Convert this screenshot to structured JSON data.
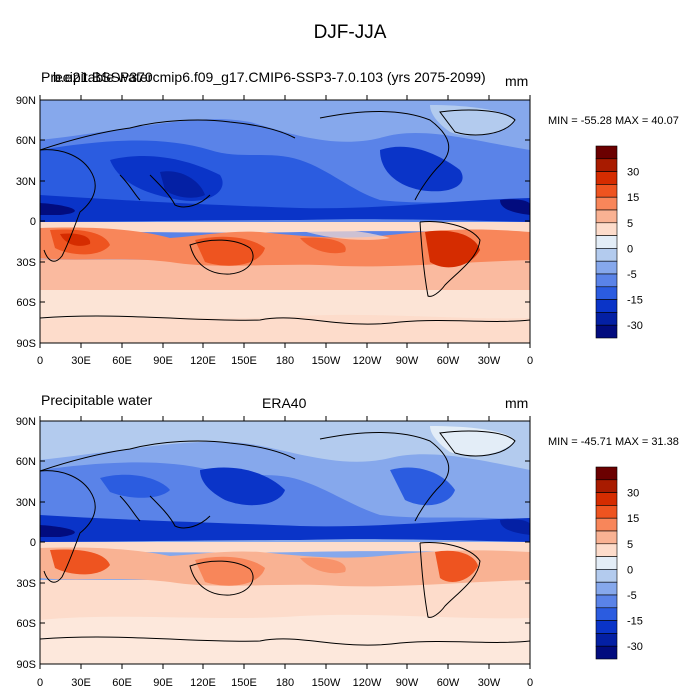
{
  "figure": {
    "title": "DJF-JJA"
  },
  "panels": [
    {
      "left_text": "Precipitable water",
      "center_text": "b.e21.BSSP370cmip6.f09_g17.CMIP6-SSP3-7.0.103 (yrs 2075-2099)",
      "units": "mm",
      "stats": "MIN = -55.28 MAX =  40.07"
    },
    {
      "left_text": "Precipitable water",
      "center_text": "ERA40",
      "units": "mm",
      "stats": "MIN = -45.71 MAX =  31.38"
    }
  ],
  "map": {
    "lat_ticks": [
      "90N",
      "60N",
      "30N",
      "0",
      "30S",
      "60S",
      "90S"
    ],
    "lon_ticks": [
      "0",
      "30E",
      "60E",
      "90E",
      "120E",
      "150E",
      "180",
      "150W",
      "120W",
      "90W",
      "60W",
      "30W",
      "0"
    ]
  },
  "colorbar": {
    "levels": [
      "30",
      "15",
      "5",
      "0",
      "-5",
      "-15",
      "-30"
    ],
    "colors": [
      "#6b0000",
      "#a81b00",
      "#d52c00",
      "#ee5420",
      "#f8865a",
      "#f9b293",
      "#fddccb",
      "#e3edf7",
      "#b3cbee",
      "#86a8ec",
      "#5a83e8",
      "#2b5ce0",
      "#0a34c8",
      "#0420a4",
      "#020c7e"
    ]
  }
}
